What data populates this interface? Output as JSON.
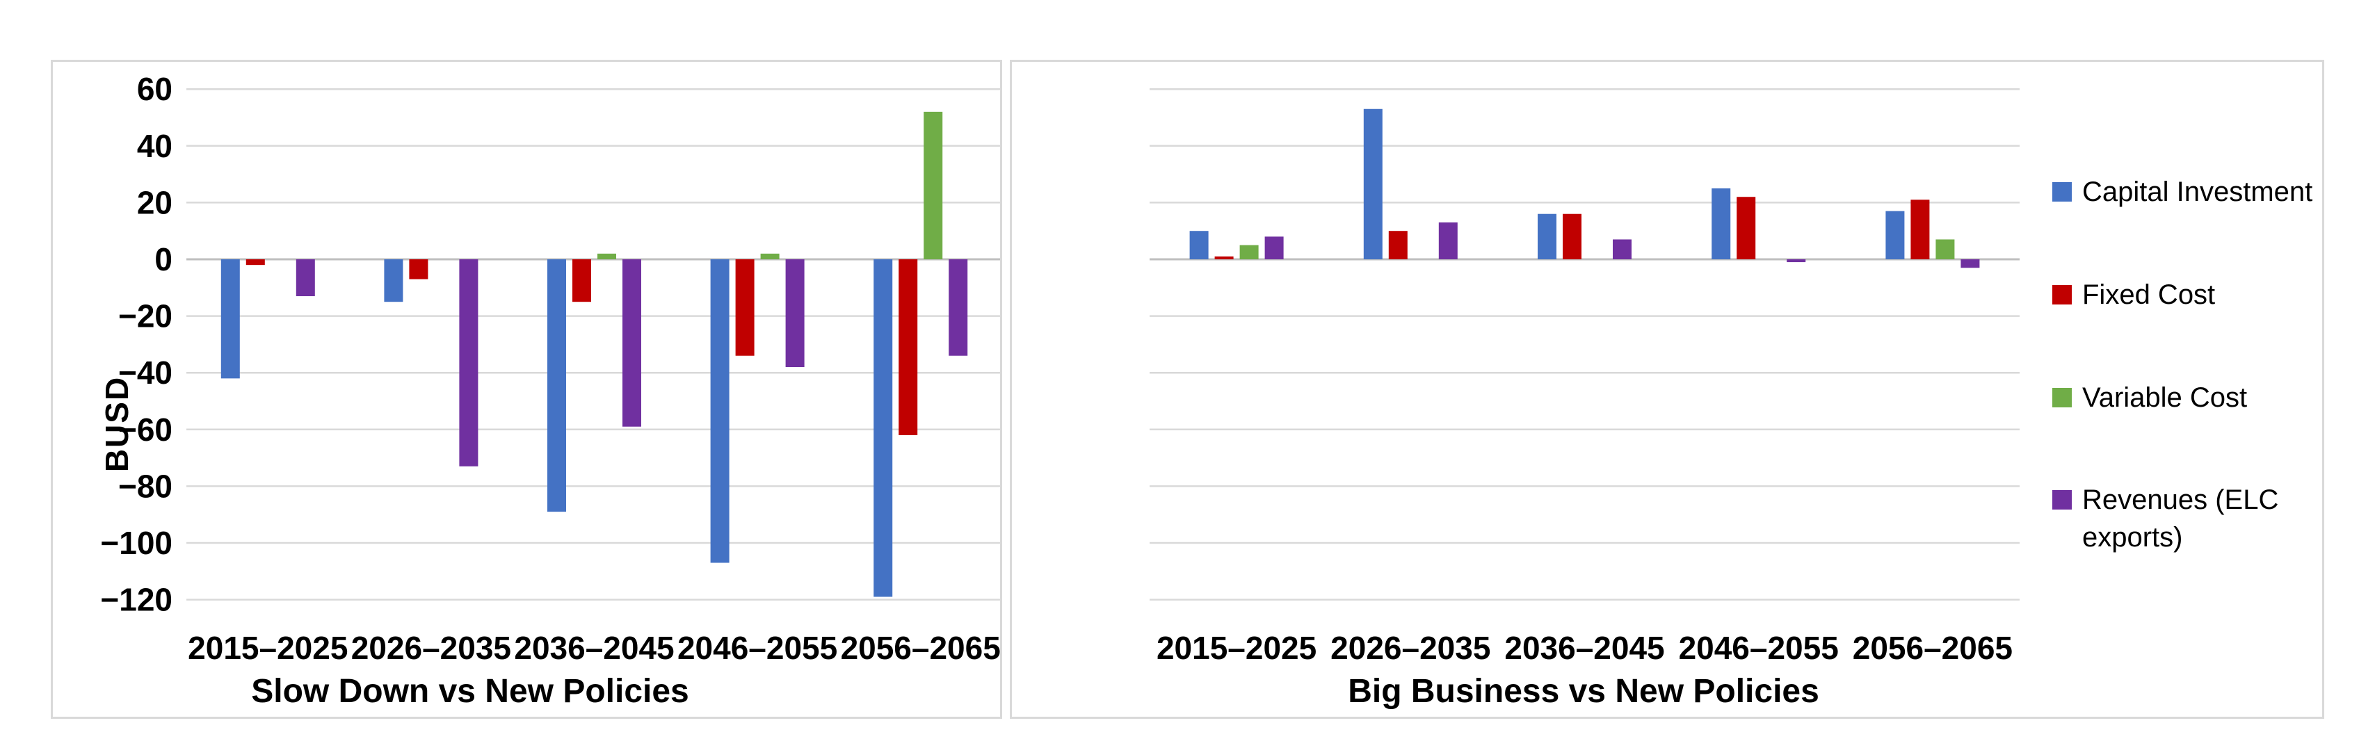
{
  "colors": {
    "background": "#ffffff",
    "panel_border": "#d9d9d9",
    "gridline": "#d9d9d9",
    "zero_axis_line": "#bfbfbf",
    "text": "#000000",
    "capital_investment": "#4472C4",
    "fixed_cost": "#C00000",
    "variable_cost": "#70AD47",
    "revenues": "#7030A0"
  },
  "legend": {
    "items": [
      {
        "label": "Capital Investment",
        "color": "#4472C4"
      },
      {
        "label": "Fixed Cost",
        "color": "#C00000"
      },
      {
        "label": "Variable Cost",
        "color": "#70AD47"
      },
      {
        "label": "Revenues (ELC exports)",
        "color": "#7030A0"
      }
    ]
  },
  "chart_data": [
    {
      "type": "bar",
      "title": "Slow Down vs New Policies",
      "xlabel": "Slow Down vs New Policies",
      "ylabel": "BUSD",
      "ylim": [
        -120,
        60
      ],
      "ytick_step": 20,
      "yticks": [
        "60",
        "40",
        "20",
        "0",
        "−20",
        "−40",
        "−60",
        "−80",
        "−100",
        "−120"
      ],
      "show_ytick_labels": true,
      "grid": true,
      "legend_position": "none",
      "categories": [
        "2015–2025",
        "2026–2035",
        "2036–2045",
        "2046–2055",
        "2056–2065"
      ],
      "series": [
        {
          "name": "Capital Investment",
          "color": "#4472C4",
          "values": [
            -42,
            -15,
            -89,
            -107,
            -119
          ]
        },
        {
          "name": "Fixed Cost",
          "color": "#C00000",
          "values": [
            -2,
            -7,
            -15,
            -34,
            -62
          ]
        },
        {
          "name": "Variable Cost",
          "color": "#70AD47",
          "values": [
            0,
            0,
            2,
            2,
            52
          ]
        },
        {
          "name": "Revenues (ELC exports)",
          "color": "#7030A0",
          "values": [
            -13,
            -73,
            -59,
            -38,
            -34
          ]
        }
      ]
    },
    {
      "type": "bar",
      "title": "Big Business vs New Policies",
      "xlabel": "Big Business vs New Policies",
      "ylabel": "",
      "ylim": [
        -120,
        60
      ],
      "ytick_step": 20,
      "yticks": [],
      "show_ytick_labels": false,
      "grid": true,
      "legend_position": "right",
      "categories": [
        "2015–2025",
        "2026–2035",
        "2036–2045",
        "2046–2055",
        "2056–2065"
      ],
      "series": [
        {
          "name": "Capital Investment",
          "color": "#4472C4",
          "values": [
            10,
            53,
            16,
            25,
            17
          ]
        },
        {
          "name": "Fixed Cost",
          "color": "#C00000",
          "values": [
            1,
            10,
            16,
            22,
            21
          ]
        },
        {
          "name": "Variable Cost",
          "color": "#70AD47",
          "values": [
            5,
            0,
            0,
            0,
            7
          ]
        },
        {
          "name": "Revenues (ELC exports)",
          "color": "#7030A0",
          "values": [
            8,
            13,
            7,
            -1,
            -3
          ]
        }
      ]
    }
  ]
}
